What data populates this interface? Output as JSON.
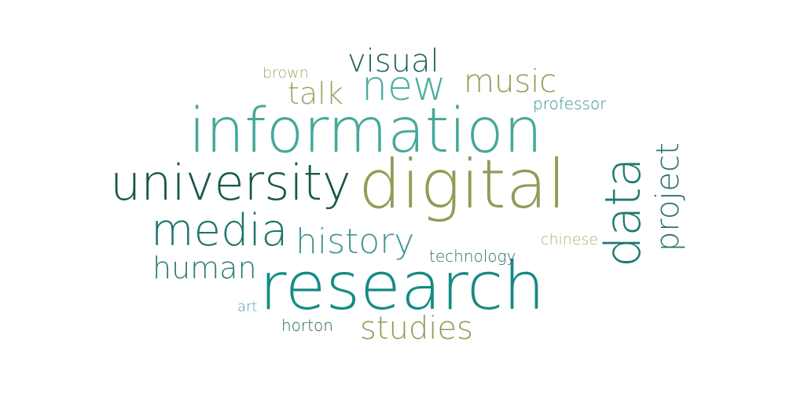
{
  "word_cloud": {
    "words": {
      "information": {
        "text": "information",
        "color": "#45a89a"
      },
      "digital": {
        "text": "digital",
        "color": "#8d9e56"
      },
      "university": {
        "text": "university",
        "color": "#17574d"
      },
      "research": {
        "text": "research",
        "color": "#158b83"
      },
      "media": {
        "text": "media",
        "color": "#20766d"
      },
      "history": {
        "text": "history",
        "color": "#3f9893"
      },
      "human": {
        "text": "human",
        "color": "#2a7a72"
      },
      "studies": {
        "text": "studies",
        "color": "#8d9e56"
      },
      "visual": {
        "text": "visual",
        "color": "#1f6159"
      },
      "new": {
        "text": "new",
        "color": "#4aaea1"
      },
      "music": {
        "text": "music",
        "color": "#8d9e56"
      },
      "talk": {
        "text": "talk",
        "color": "#9aa563"
      },
      "brown": {
        "text": "brown",
        "color": "#a3aa67"
      },
      "professor": {
        "text": "professor",
        "color": "#2f8e8a"
      },
      "technology": {
        "text": "technology",
        "color": "#286d67"
      },
      "chinese": {
        "text": "chinese",
        "color": "#a6ae71"
      },
      "art": {
        "text": "art",
        "color": "#4d9fa3"
      },
      "horton": {
        "text": "horton",
        "color": "#1f6159"
      },
      "data": {
        "text": "data",
        "color": "#1e7a72"
      },
      "project": {
        "text": "project",
        "color": "#2a726d"
      }
    }
  }
}
